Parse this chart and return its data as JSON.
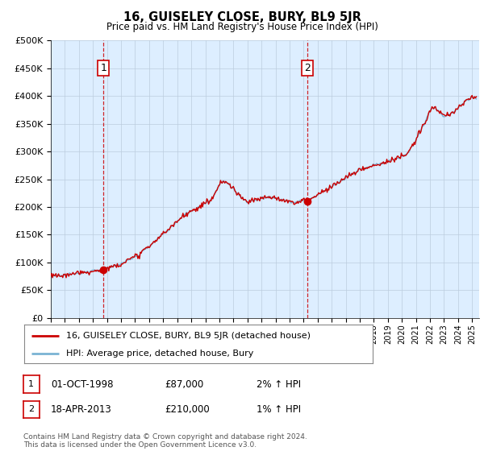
{
  "title": "16, GUISELEY CLOSE, BURY, BL9 5JR",
  "subtitle": "Price paid vs. HM Land Registry's House Price Index (HPI)",
  "ytick_values": [
    0,
    50000,
    100000,
    150000,
    200000,
    250000,
    300000,
    350000,
    400000,
    450000,
    500000
  ],
  "ylim": [
    0,
    500000
  ],
  "xlim_start": 1995.0,
  "xlim_end": 2025.5,
  "hpi_color": "#7ab3d4",
  "price_color": "#cc0000",
  "sale1_x": 1998.75,
  "sale1_y": 87000,
  "sale2_x": 2013.29,
  "sale2_y": 210000,
  "legend_label1": "16, GUISELEY CLOSE, BURY, BL9 5JR (detached house)",
  "legend_label2": "HPI: Average price, detached house, Bury",
  "annotation1_label": "1",
  "annotation2_label": "2",
  "table_row1": [
    "1",
    "01-OCT-1998",
    "£87,000",
    "2% ↑ HPI"
  ],
  "table_row2": [
    "2",
    "18-APR-2013",
    "£210,000",
    "1% ↑ HPI"
  ],
  "footer": "Contains HM Land Registry data © Crown copyright and database right 2024.\nThis data is licensed under the Open Government Licence v3.0.",
  "bg_color": "#ddeeff",
  "grid_color": "#bbccdd"
}
